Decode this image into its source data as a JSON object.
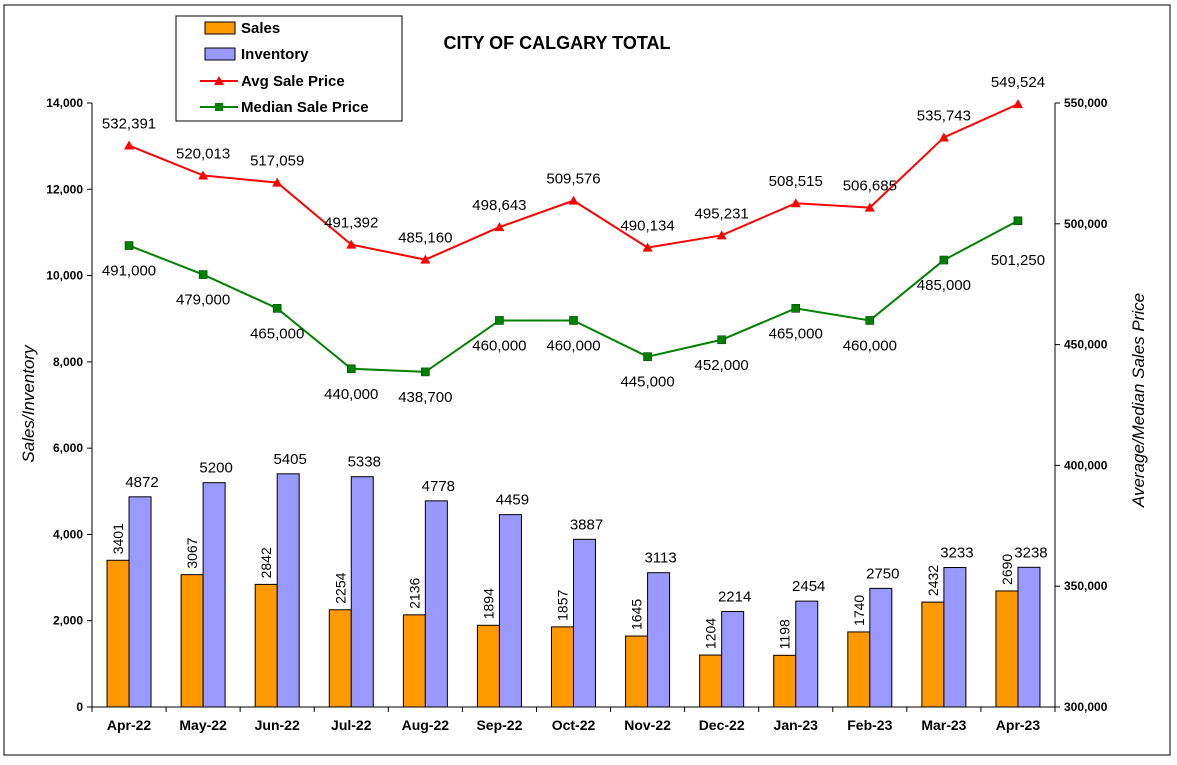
{
  "chart_data": {
    "type": "bar",
    "title": "CITY OF CALGARY TOTAL",
    "ylabel": "Sales/Inventory",
    "y2label": "Average/Median Sales Price",
    "categories": [
      "Apr-22",
      "May-22",
      "Jun-22",
      "Jul-22",
      "Aug-22",
      "Sep-22",
      "Oct-22",
      "Nov-22",
      "Dec-22",
      "Jan-23",
      "Feb-23",
      "Mar-23",
      "Apr-23"
    ],
    "ylim": [
      0,
      14000
    ],
    "yticks": [
      "0",
      "2,000",
      "4,000",
      "6,000",
      "8,000",
      "10,000",
      "12,000",
      "14,000"
    ],
    "y2lim": [
      300000,
      550000
    ],
    "y2ticks": [
      "300,000",
      "350,000",
      "400,000",
      "450,000",
      "500,000",
      "550,000"
    ],
    "legend_position": "top-left",
    "grid": false,
    "bar_series": [
      {
        "name": "Sales",
        "color": "#ff9900",
        "values": [
          3401,
          3067,
          2842,
          2254,
          2136,
          1894,
          1857,
          1645,
          1204,
          1198,
          1740,
          2432,
          2690
        ],
        "labels": [
          "3401",
          "3067",
          "2842",
          "2254",
          "2136",
          "1894",
          "1857",
          "1645",
          "1204",
          "1198",
          "1740",
          "2432",
          "2690"
        ]
      },
      {
        "name": "Inventory",
        "color": "#9999ff",
        "values": [
          4872,
          5200,
          5405,
          5338,
          4778,
          4459,
          3887,
          3113,
          2214,
          2454,
          2750,
          3233,
          3238
        ],
        "labels": [
          "4872",
          "5200",
          "5405",
          "5338",
          "4778",
          "4459",
          "3887",
          "3113",
          "2214",
          "2454",
          "2750",
          "3233",
          "3238"
        ]
      }
    ],
    "line_series": [
      {
        "name": "Avg Sale Price",
        "color": "#ff0000",
        "marker": "triangle",
        "values": [
          532391,
          520013,
          517059,
          491392,
          485160,
          498643,
          509576,
          490134,
          495231,
          508515,
          506685,
          535743,
          549524
        ],
        "labels": [
          "532,391",
          "520,013",
          "517,059",
          "491,392",
          "485,160",
          "498,643",
          "509,576",
          "490,134",
          "495,231",
          "508,515",
          "506,685",
          "535,743",
          "549,524"
        ]
      },
      {
        "name": "Median Sale Price",
        "color": "#008000",
        "marker": "square",
        "values": [
          491000,
          479000,
          465000,
          440000,
          438700,
          460000,
          460000,
          445000,
          452000,
          465000,
          460000,
          485000,
          501250
        ],
        "labels": [
          "491,000",
          "479,000",
          "465,000",
          "440,000",
          "438,700",
          "460,000",
          "460,000",
          "445,000",
          "452,000",
          "465,000",
          "460,000",
          "485,000",
          "501,250"
        ]
      }
    ]
  }
}
